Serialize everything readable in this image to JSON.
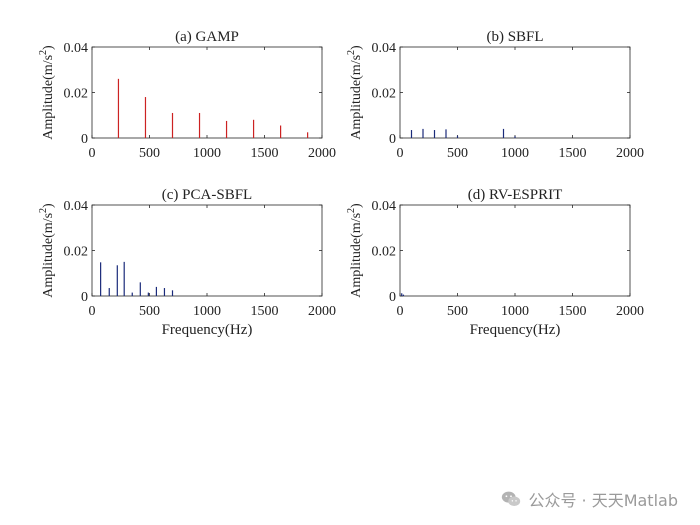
{
  "chart_data": [
    {
      "type": "bar",
      "title": "(a) GAMP",
      "ylabel": "Amplitude(m/s^2)",
      "xlabel": "",
      "xlim": [
        0,
        2000
      ],
      "ylim": [
        0,
        0.04
      ],
      "xticks": [
        "0",
        "500",
        "1000",
        "1500",
        "2000"
      ],
      "yticks": [
        "0",
        "0.02",
        "0.04"
      ],
      "color": "#cc2222",
      "points": [
        {
          "x": 230,
          "y": 0.026
        },
        {
          "x": 465,
          "y": 0.018
        },
        {
          "x": 700,
          "y": 0.011
        },
        {
          "x": 935,
          "y": 0.011
        },
        {
          "x": 1170,
          "y": 0.0075
        },
        {
          "x": 1405,
          "y": 0.008
        },
        {
          "x": 1640,
          "y": 0.0055
        },
        {
          "x": 1875,
          "y": 0.0025
        }
      ]
    },
    {
      "type": "bar",
      "title": "(b) SBFL",
      "ylabel": "Amplitude(m/s^2)",
      "xlabel": "",
      "xlim": [
        0,
        2000
      ],
      "ylim": [
        0,
        0.04
      ],
      "xticks": [
        "0",
        "500",
        "1000",
        "1500",
        "2000"
      ],
      "yticks": [
        "0",
        "0.02",
        "0.04"
      ],
      "color": "#1a2a7a",
      "points": [
        {
          "x": 100,
          "y": 0.0035
        },
        {
          "x": 200,
          "y": 0.004
        },
        {
          "x": 300,
          "y": 0.0035
        },
        {
          "x": 400,
          "y": 0.0038
        },
        {
          "x": 500,
          "y": 0.001
        },
        {
          "x": 900,
          "y": 0.004
        },
        {
          "x": 1000,
          "y": 0.0008
        }
      ]
    },
    {
      "type": "bar",
      "title": "(c) PCA-SBFL",
      "ylabel": "Amplitude(m/s^2)",
      "xlabel": "Frequency(Hz)",
      "xlim": [
        0,
        2000
      ],
      "ylim": [
        0,
        0.04
      ],
      "xticks": [
        "0",
        "500",
        "1000",
        "1500",
        "2000"
      ],
      "yticks": [
        "0",
        "0.02",
        "0.04"
      ],
      "color": "#1a2a7a",
      "points": [
        {
          "x": 75,
          "y": 0.0148
        },
        {
          "x": 150,
          "y": 0.0035
        },
        {
          "x": 220,
          "y": 0.0135
        },
        {
          "x": 280,
          "y": 0.015
        },
        {
          "x": 350,
          "y": 0.0015
        },
        {
          "x": 420,
          "y": 0.006
        },
        {
          "x": 490,
          "y": 0.0015
        },
        {
          "x": 560,
          "y": 0.004
        },
        {
          "x": 630,
          "y": 0.0035
        },
        {
          "x": 700,
          "y": 0.0025
        }
      ]
    },
    {
      "type": "bar",
      "title": "(d) RV-ESPRIT",
      "ylabel": "Amplitude(m/s^2)",
      "xlabel": "Frequency(Hz)",
      "xlim": [
        0,
        2000
      ],
      "ylim": [
        0,
        0.04
      ],
      "xticks": [
        "0",
        "500",
        "1000",
        "1500",
        "2000"
      ],
      "yticks": [
        "0",
        "0.02",
        "0.04"
      ],
      "color": "#1a2a7a",
      "points": [
        {
          "x": 15,
          "y": 0.0012
        },
        {
          "x": 30,
          "y": 0.0006
        }
      ]
    }
  ],
  "watermark": {
    "text": "公众号 · 天天Matlab"
  }
}
